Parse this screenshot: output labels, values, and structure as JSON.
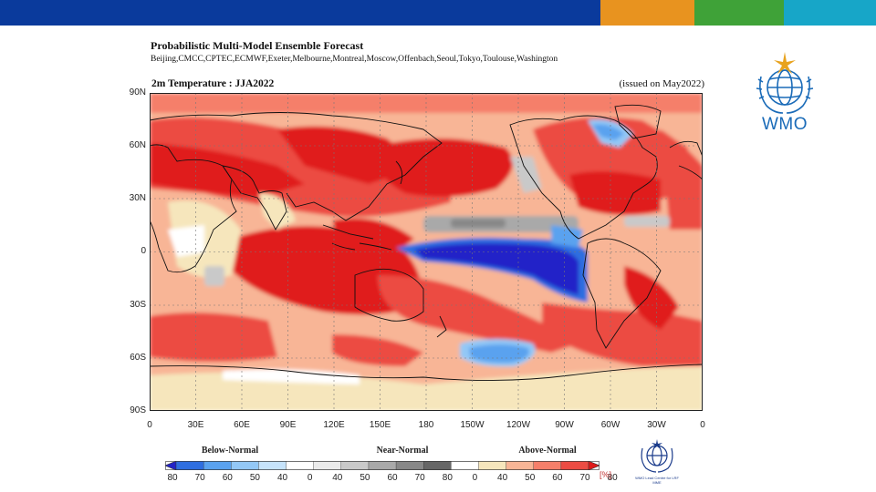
{
  "banner_colors": {
    "blue": "#0a3a9c",
    "orange": "#e8931f",
    "green": "#3fa238",
    "teal": "#17a6c8"
  },
  "figure": {
    "title": "Probabilistic Multi-Model Ensemble Forecast",
    "centres": "Beijing,CMCC,CPTEC,ECMWF,Exeter,Melbourne,Montreal,Moscow,Offenbach,Seoul,Tokyo,Toulouse,Washington",
    "panel_title": "2m Temperature : JJA2022",
    "issued": "(issued on May2022)"
  },
  "axes": {
    "lat_labels": [
      "90N",
      "60N",
      "30N",
      "0",
      "30S",
      "60S",
      "90S"
    ],
    "lon_labels": [
      "0",
      "30E",
      "60E",
      "90E",
      "120E",
      "150E",
      "180",
      "150W",
      "120W",
      "90W",
      "60W",
      "30W",
      "0"
    ]
  },
  "legend": {
    "below": "Below-Normal",
    "near": "Near-Normal",
    "above": "Above-Normal",
    "ticks": [
      "80",
      "70",
      "60",
      "50",
      "40",
      "0",
      "40",
      "50",
      "60",
      "70",
      "80",
      "0",
      "40",
      "50",
      "60",
      "70",
      "80"
    ],
    "unit": "[%]",
    "colors": [
      "#2323c8",
      "#2f6ee0",
      "#5aa2ef",
      "#93c8f6",
      "#c6e3fb",
      "#ffffff",
      "#ebebeb",
      "#c9c9c9",
      "#a9a9a9",
      "#888888",
      "#666666",
      "#ffffff",
      "#f6e6bc",
      "#f8b596",
      "#f57f6a",
      "#ec4c43",
      "#e01b1b"
    ]
  },
  "logos": {
    "wmo": "WMO",
    "lead_centre": "WMO Lead Centre for LRF MME"
  },
  "icons": [
    "wmo-emblem-icon",
    "lead-centre-emblem-icon"
  ]
}
